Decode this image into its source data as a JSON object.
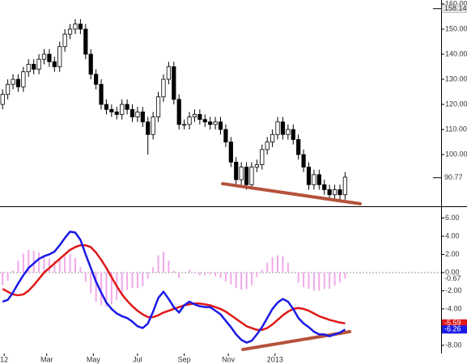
{
  "chart_data": [
    {
      "type": "candlestick",
      "xlim": [
        -0.5,
        84.5
      ],
      "ylim": [
        79.4,
        161.6
      ],
      "yticks": [
        {
          "value": 160,
          "label": "160.00"
        },
        {
          "value": 150,
          "label": "150.00"
        },
        {
          "value": 140,
          "label": "140.00"
        },
        {
          "value": 130,
          "label": "130.00"
        },
        {
          "value": 120,
          "label": "120.00"
        },
        {
          "value": 110,
          "label": "110.00"
        },
        {
          "value": 100,
          "label": "100.00"
        }
      ],
      "up_color": "#ffffff",
      "down_color": "#000000",
      "outline_color": "#000000",
      "open": [
        120,
        124,
        128,
        130,
        127,
        133,
        136,
        134,
        138,
        140,
        137,
        135,
        143,
        148,
        150,
        152,
        150,
        140,
        132,
        128,
        120,
        118,
        117,
        116,
        120,
        118,
        115,
        117,
        113,
        108,
        115,
        123,
        130,
        135,
        122,
        112,
        112,
        115,
        116,
        114,
        113,
        112,
        113,
        110,
        105,
        97,
        90,
        95,
        88,
        95,
        96,
        102,
        105,
        108,
        113,
        108,
        110,
        106,
        100,
        95,
        88,
        92,
        88,
        86,
        84,
        86,
        84
      ],
      "high": [
        126,
        130,
        132,
        132,
        135,
        138,
        138,
        140,
        142,
        142,
        139,
        145,
        150,
        152,
        154,
        154,
        152,
        142,
        134,
        130,
        122,
        120,
        119,
        122,
        122,
        120,
        119,
        119,
        115,
        117,
        125,
        132,
        137,
        137,
        124,
        114,
        117,
        118,
        118,
        116,
        115,
        115,
        115,
        112,
        107,
        99,
        97,
        97,
        97,
        98,
        104,
        107,
        110,
        115,
        115,
        112,
        112,
        108,
        102,
        97,
        94,
        94,
        90,
        88,
        88,
        88,
        93
      ],
      "low": [
        118,
        122,
        126,
        125,
        125,
        131,
        132,
        132,
        136,
        135,
        133,
        133,
        141,
        146,
        148,
        148,
        138,
        130,
        126,
        118,
        116,
        115,
        114,
        114,
        116,
        113,
        113,
        111,
        100,
        106,
        113,
        121,
        128,
        120,
        110,
        110,
        110,
        113,
        112,
        111,
        110,
        110,
        108,
        103,
        95,
        88,
        88,
        86,
        86,
        93,
        94,
        100,
        103,
        106,
        106,
        106,
        104,
        98,
        93,
        86,
        86,
        86,
        84,
        82,
        82,
        82,
        82
      ],
      "close": [
        124,
        128,
        130,
        127,
        133,
        136,
        134,
        138,
        140,
        137,
        135,
        143,
        148,
        150,
        152,
        150,
        140,
        132,
        128,
        120,
        118,
        117,
        116,
        120,
        118,
        115,
        117,
        113,
        108,
        115,
        123,
        130,
        135,
        122,
        112,
        112,
        115,
        116,
        114,
        113,
        112,
        113,
        110,
        105,
        97,
        90,
        95,
        88,
        95,
        96,
        102,
        105,
        108,
        113,
        108,
        110,
        106,
        100,
        95,
        88,
        92,
        88,
        86,
        84,
        86,
        84,
        91
      ],
      "price_labels": [
        {
          "value": 158.14,
          "label": "158.14"
        },
        {
          "value": 90.77,
          "label": "90.77"
        }
      ],
      "trendlines": [
        {
          "x": [
            42.4,
            68.9
          ],
          "y": [
            88.4,
            80.4
          ],
          "color": "#b5523b"
        }
      ]
    },
    {
      "type": "line",
      "xlim": [
        -0.5,
        84.5
      ],
      "ylim": [
        -8.9,
        7.2
      ],
      "yticks": [
        {
          "value": 6,
          "label": "6.00"
        },
        {
          "value": 4,
          "label": "4.00"
        },
        {
          "value": 2,
          "label": "2.00"
        },
        {
          "value": 0,
          "label": "0.00"
        },
        {
          "value": -2,
          "label": "-2.00"
        },
        {
          "value": -4,
          "label": "-4.00"
        },
        {
          "value": -8,
          "label": "-8.00"
        }
      ],
      "xticks": [
        {
          "value": 0.3,
          "label": "12"
        },
        {
          "value": 8.5,
          "label": "Mar"
        },
        {
          "value": 17.5,
          "label": "May"
        },
        {
          "value": 26,
          "label": "Jul"
        },
        {
          "value": 35,
          "label": "Sep"
        },
        {
          "value": 43.5,
          "label": "Nov"
        },
        {
          "value": 52.5,
          "label": "2013"
        }
      ],
      "reference_line": 0,
      "histogram": {
        "color": "#f2a8ea",
        "last_label": "-0.67",
        "values": [
          -1.4,
          -0.9,
          0.2,
          1.3,
          2.1,
          2.5,
          2.4,
          2.2,
          1.8,
          1.5,
          1.3,
          1.5,
          1.8,
          2.0,
          1.6,
          0.6,
          -1.0,
          -2.3,
          -3.2,
          -3.6,
          -3.8,
          -3.5,
          -3.0,
          -2.4,
          -1.9,
          -1.7,
          -1.7,
          -1.5,
          -0.7,
          0.6,
          1.9,
          2.3,
          1.3,
          0.2,
          -0.6,
          0.0,
          0.3,
          -0.1,
          -0.3,
          -0.3,
          -0.2,
          -0.4,
          -0.6,
          -1.0,
          -1.3,
          -1.7,
          -1.9,
          -1.8,
          -1.4,
          -0.5,
          0.3,
          1.1,
          1.7,
          1.9,
          1.8,
          1.1,
          0.0,
          -1.1,
          -1.6,
          -1.8,
          -2.0,
          -2.0,
          -1.8,
          -1.8,
          -1.45,
          -1.1,
          -0.67
        ]
      },
      "series": [
        {
          "color": "#e01818",
          "last_label": "-5.59",
          "values": [
            -1.8,
            -2.1,
            -2.4,
            -2.5,
            -2.4,
            -2.0,
            -1.4,
            -0.7,
            0.0,
            0.5,
            1.0,
            1.5,
            2.0,
            2.5,
            2.8,
            3.0,
            3.0,
            2.8,
            2.2,
            1.4,
            0.5,
            -0.5,
            -1.5,
            -2.4,
            -3.1,
            -3.7,
            -4.2,
            -4.6,
            -4.9,
            -4.9,
            -4.7,
            -4.4,
            -4.2,
            -4.0,
            -3.8,
            -3.6,
            -3.5,
            -3.4,
            -3.4,
            -3.5,
            -3.6,
            -3.8,
            -4.0,
            -4.3,
            -4.7,
            -5.1,
            -5.5,
            -5.9,
            -6.1,
            -6.3,
            -6.3,
            -6.1,
            -5.7,
            -5.2,
            -4.7,
            -4.3,
            -4.0,
            -3.9,
            -4.0,
            -4.2,
            -4.5,
            -4.8,
            -5.0,
            -5.2,
            -5.35,
            -5.5,
            -5.59
          ]
        },
        {
          "color": "#1a1ae6",
          "last_label": "-6.26",
          "values": [
            -3.2,
            -3.0,
            -2.2,
            -1.2,
            -0.3,
            0.5,
            1.0,
            1.5,
            1.8,
            2.0,
            2.3,
            3.0,
            3.8,
            4.5,
            4.4,
            3.6,
            2.0,
            0.5,
            -1.0,
            -2.2,
            -3.3,
            -4.0,
            -4.5,
            -4.8,
            -5.0,
            -5.4,
            -5.9,
            -6.1,
            -5.6,
            -4.3,
            -2.8,
            -2.1,
            -2.9,
            -3.8,
            -4.4,
            -3.6,
            -3.2,
            -3.5,
            -3.7,
            -3.8,
            -3.8,
            -4.2,
            -4.6,
            -5.3,
            -6.0,
            -6.8,
            -7.4,
            -7.7,
            -7.5,
            -6.8,
            -6.0,
            -5.0,
            -4.0,
            -3.3,
            -2.9,
            -3.2,
            -4.0,
            -5.0,
            -5.6,
            -6.0,
            -6.5,
            -6.8,
            -6.8,
            -7.0,
            -6.8,
            -6.6,
            -6.26
          ]
        }
      ],
      "trendlines": [
        {
          "x": [
            46.3,
            66.9
          ],
          "y": [
            -8.46,
            -6.5
          ],
          "color": "#b5523b"
        }
      ]
    }
  ]
}
